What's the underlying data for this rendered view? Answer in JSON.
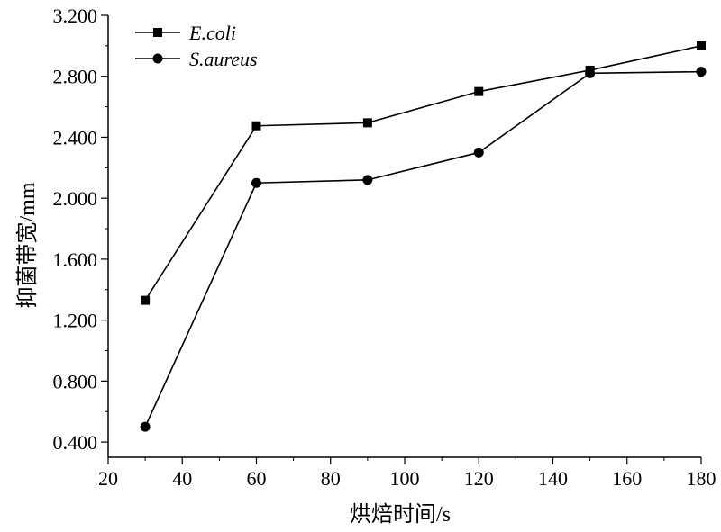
{
  "chart_data": {
    "type": "line",
    "x": [
      30,
      60,
      90,
      120,
      150,
      180
    ],
    "series": [
      {
        "name": "E.coli",
        "marker": "square",
        "values": [
          1.33,
          2.475,
          2.495,
          2.7,
          2.84,
          3.0
        ]
      },
      {
        "name": "S.aureus",
        "marker": "circle",
        "values": [
          0.5,
          2.1,
          2.12,
          2.3,
          2.82,
          2.83
        ]
      }
    ],
    "xlabel": "烘焙时间/s",
    "ylabel": "抑菌带宽/mm",
    "xlim": [
      20,
      180
    ],
    "ylim": [
      0.3,
      3.2
    ],
    "xticks": [
      20,
      40,
      60,
      80,
      100,
      120,
      140,
      160,
      180
    ],
    "xtick_labels": [
      "20",
      "40",
      "60",
      "80",
      "100",
      "120",
      "140",
      "160",
      "180"
    ],
    "yticks": [
      0.4,
      0.8,
      1.2,
      1.6,
      2.0,
      2.4,
      2.8,
      3.2
    ],
    "ytick_labels": [
      "0.400",
      "0.800",
      "1.200",
      "1.600",
      "2.000",
      "2.400",
      "2.800",
      "3.200"
    ],
    "grid": false,
    "legend_position": "top-left",
    "colors": {
      "line": "#000000",
      "background": "#ffffff"
    }
  }
}
